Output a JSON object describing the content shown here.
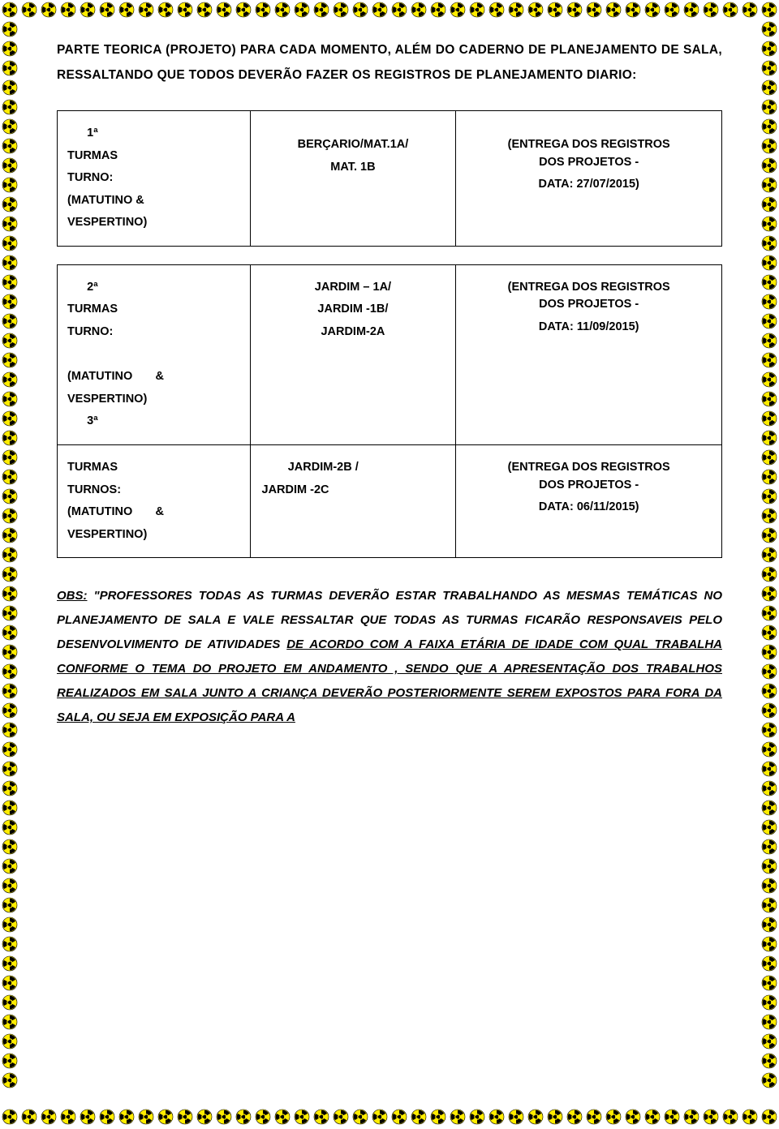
{
  "border": {
    "icon_count_h": 40,
    "icon_count_v": 58,
    "icon_size": 20,
    "spacing_h": 24,
    "spacing_v": 24,
    "colors": {
      "yellow": "#ffec00",
      "black": "#000000",
      "outline": "#000000"
    }
  },
  "intro": "PARTE TEORICA (PROJETO) PARA CADA MOMENTO, ALÉM DO CADERNO DE PLANEJAMENTO DE SALA, RESSALTANDO QUE TODOS DEVERÃO FAZER OS REGISTROS DE PLANEJAMENTO DIARIO:",
  "table1": {
    "r1c1_line1": "      1ª",
    "r1c1_line2": "TURMAS",
    "r1c1_line3": "TURNO:",
    "r1c1_line4": "(MATUTINO &",
    "r1c1_line5": "VESPERTINO)",
    "r1c2_line1": "BERÇARIO/MAT.1A/",
    "r1c2_line2": "MAT. 1B",
    "r1c3_line1": "(ENTREGA DOS REGISTROS",
    "r1c3_line2": "DOS PROJETOS -",
    "r1c3_line3": "DATA: 27/07/2015)"
  },
  "table2": {
    "r1c1_line1": "      2ª",
    "r1c1_line2": "TURMAS",
    "r1c1_line3": "TURNO:",
    "r1c2_line1": "JARDIM – 1A/",
    "r1c2_line2": "JARDIM -1B/",
    "r1c2_line3": "JARDIM-2A",
    "r1c3_line1": "(ENTREGA DOS REGISTROS",
    "r1c3_line2": "DOS PROJETOS -",
    "r1c3_line3": "DATA: 11/09/2015)",
    "r2c1_line1": "(MATUTINO       &",
    "r2c1_line2": "VESPERTINO)",
    "r2c1_line3": "      3ª",
    "r3c1_line1": "TURMAS",
    "r3c1_line2": "TURNOS:",
    "r3c1_line3": "(MATUTINO       &",
    "r3c1_line4": "VESPERTINO)",
    "r3c2_line1": "        JARDIM-2B /",
    "r3c2_line2": "JARDIM -2C",
    "r3c3_line1": "(ENTREGA DOS REGISTROS",
    "r3c3_line2": "DOS PROJETOS -",
    "r3c3_line3": "DATA: 06/11/2015)"
  },
  "obs": {
    "label": "OBS:",
    "body_before": " \"PROFESSORES TODAS AS TURMAS DEVERÃO ESTAR TRABALHANDO AS MESMAS TEMÁTICAS NO PLANEJAMENTO DE SALA E VALE RESSALTAR QUE TODAS AS TURMAS FICARÃO RESPONSAVEIS PELO DESENVOLVIMENTO DE ATIVIDADES ",
    "underlined": "DE ACORDO COM A FAIXA ETÁRIA DE IDADE COM QUAL TRABALHA CONFORME O TEMA DO PROJETO EM ANDAMENTO , SENDO QUE A APRESENTAÇÃO DOS TRABALHOS REALIZADOS EM SALA JUNTO A CRIANÇA DEVERÃO POSTERIORMENTE SEREM EXPOSTOS PARA FORA DA SALA, OU SEJA EM EXPOSIÇÃO PARA A"
  },
  "typography": {
    "body_font": "Verdana, Arial, sans-serif",
    "intro_fontsize": 15.5,
    "table_fontsize": 14.5,
    "obs_fontsize": 15,
    "font_weight": "bold",
    "line_height": 2.0,
    "text_color": "#000000",
    "background_color": "#ffffff"
  }
}
